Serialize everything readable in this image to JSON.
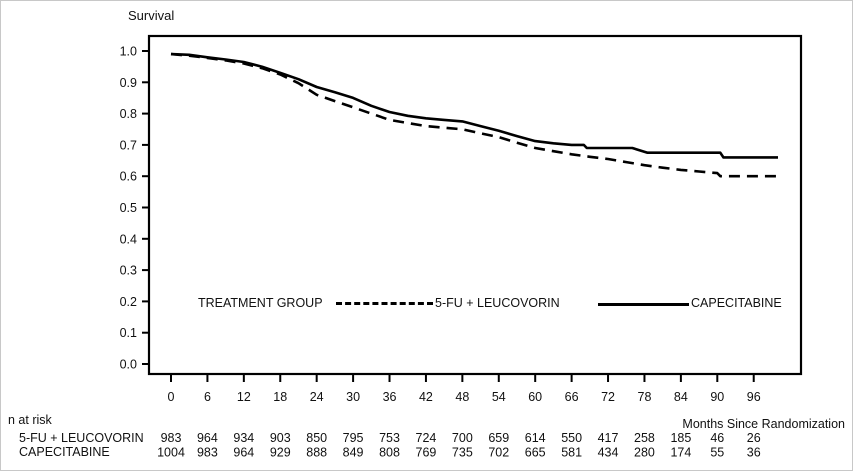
{
  "chart_data": {
    "type": "line",
    "subtype": "kaplan-meier-survival",
    "title": "",
    "ylabel": "Survival",
    "xlabel": "Months Since Randomization",
    "ylim": [
      0.0,
      1.0
    ],
    "xlim": [
      0,
      100
    ],
    "yticks": [
      "0.0",
      "0.1",
      "0.2",
      "0.3",
      "0.4",
      "0.5",
      "0.6",
      "0.7",
      "0.8",
      "0.9",
      "1.0"
    ],
    "xticks": [
      0,
      6,
      12,
      18,
      24,
      30,
      36,
      42,
      48,
      54,
      60,
      66,
      72,
      78,
      84,
      90,
      96
    ],
    "grid": "off",
    "line_color": "#000000",
    "legend": {
      "position": "inside-bottom-center",
      "title": "TREATMENT GROUP",
      "entries": [
        {
          "label": "5-FU + LEUCOVORIN",
          "style": "dashed"
        },
        {
          "label": "CAPECITABINE",
          "style": "solid"
        }
      ]
    },
    "series": [
      {
        "name": "5-FU + LEUCOVORIN",
        "style": "dashed",
        "points": [
          [
            0,
            0.99
          ],
          [
            3,
            0.985
          ],
          [
            6,
            0.978
          ],
          [
            9,
            0.97
          ],
          [
            12,
            0.96
          ],
          [
            15,
            0.945
          ],
          [
            18,
            0.925
          ],
          [
            21,
            0.897
          ],
          [
            24,
            0.86
          ],
          [
            27,
            0.84
          ],
          [
            30,
            0.82
          ],
          [
            33,
            0.8
          ],
          [
            36,
            0.78
          ],
          [
            39,
            0.77
          ],
          [
            42,
            0.76
          ],
          [
            45,
            0.755
          ],
          [
            48,
            0.75
          ],
          [
            51,
            0.737
          ],
          [
            54,
            0.725
          ],
          [
            57,
            0.707
          ],
          [
            60,
            0.69
          ],
          [
            63,
            0.68
          ],
          [
            66,
            0.67
          ],
          [
            69,
            0.662
          ],
          [
            72,
            0.655
          ],
          [
            75,
            0.645
          ],
          [
            78,
            0.635
          ],
          [
            81,
            0.627
          ],
          [
            84,
            0.62
          ],
          [
            87,
            0.615
          ],
          [
            90,
            0.61
          ],
          [
            90.5,
            0.6
          ],
          [
            96,
            0.6
          ],
          [
            100,
            0.6
          ]
        ]
      },
      {
        "name": "CAPECITABINE",
        "style": "solid",
        "points": [
          [
            0,
            0.99
          ],
          [
            3,
            0.988
          ],
          [
            6,
            0.98
          ],
          [
            9,
            0.973
          ],
          [
            12,
            0.965
          ],
          [
            15,
            0.95
          ],
          [
            18,
            0.93
          ],
          [
            21,
            0.91
          ],
          [
            24,
            0.885
          ],
          [
            27,
            0.868
          ],
          [
            30,
            0.85
          ],
          [
            33,
            0.825
          ],
          [
            36,
            0.805
          ],
          [
            39,
            0.793
          ],
          [
            42,
            0.785
          ],
          [
            45,
            0.78
          ],
          [
            48,
            0.775
          ],
          [
            51,
            0.76
          ],
          [
            54,
            0.745
          ],
          [
            57,
            0.728
          ],
          [
            60,
            0.712
          ],
          [
            63,
            0.705
          ],
          [
            66,
            0.7
          ],
          [
            68,
            0.7
          ],
          [
            68.5,
            0.69
          ],
          [
            76,
            0.69
          ],
          [
            78.5,
            0.675
          ],
          [
            84,
            0.675
          ],
          [
            90.5,
            0.675
          ],
          [
            91,
            0.66
          ],
          [
            96,
            0.66
          ],
          [
            100,
            0.66
          ]
        ]
      }
    ]
  },
  "risk_table": {
    "title": "n at risk",
    "axis_note": "Months Since Randomization",
    "timepoints": [
      0,
      6,
      12,
      18,
      24,
      30,
      36,
      42,
      48,
      54,
      60,
      66,
      72,
      78,
      84,
      90,
      96
    ],
    "rows": [
      {
        "label": "5-FU + LEUCOVORIN",
        "values": [
          983,
          964,
          934,
          903,
          850,
          795,
          753,
          724,
          700,
          659,
          614,
          550,
          417,
          258,
          185,
          46,
          26
        ]
      },
      {
        "label": "CAPECITABINE",
        "values": [
          1004,
          983,
          964,
          929,
          888,
          849,
          808,
          769,
          735,
          702,
          665,
          581,
          434,
          280,
          174,
          55,
          36
        ]
      }
    ]
  }
}
